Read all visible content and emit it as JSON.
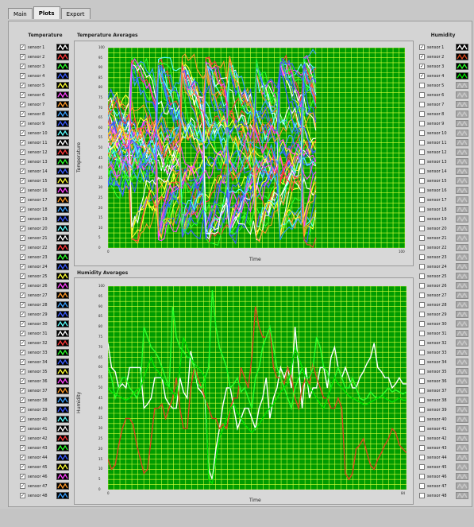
{
  "tabs": [
    {
      "label": "Main",
      "active": false
    },
    {
      "label": "Plots",
      "active": true
    },
    {
      "label": "Export",
      "active": false
    }
  ],
  "temperature_group": {
    "title": "Temperature"
  },
  "humidity_group": {
    "title": "Humidity"
  },
  "sensors": [
    "sensor 1",
    "sensor 2",
    "sensor 3",
    "sensor 4",
    "sensor 5",
    "sensor 6",
    "sensor 7",
    "sensor 8",
    "sensor 9",
    "sensor 10",
    "sensor 11",
    "sensor 12",
    "sensor 13",
    "sensor 14",
    "sensor 15",
    "sensor 16",
    "sensor 17",
    "sensor 18",
    "sensor 19",
    "sensor 20",
    "sensor 21",
    "sensor 22",
    "sensor 23",
    "sensor 24",
    "sensor 25",
    "sensor 26",
    "sensor 27",
    "sensor 28",
    "sensor 29",
    "sensor 30",
    "sensor 31",
    "sensor 32",
    "sensor 33",
    "sensor 34",
    "sensor 35",
    "sensor 36",
    "sensor 37",
    "sensor 38",
    "sensor 39",
    "sensor 40",
    "sensor 41",
    "sensor 42",
    "sensor 43",
    "sensor 44",
    "sensor 45",
    "sensor 46",
    "sensor 47",
    "sensor 48"
  ],
  "sensor_colors": [
    "#ffffff",
    "#ff3b3b",
    "#2aff2a",
    "#3a5cff",
    "#ffff33",
    "#ff44ff",
    "#ff9a2a",
    "#3aa0ff",
    "#3a5cff",
    "#5cffff",
    "#ffffff",
    "#ff3b3b",
    "#2aff2a",
    "#3a5cff",
    "#ffff33",
    "#ff44ff",
    "#ff9a2a",
    "#3aa0ff",
    "#3a5cff",
    "#5cffff",
    "#ffffff",
    "#ff3b3b",
    "#2aff2a",
    "#3a5cff",
    "#ffff33",
    "#ff44ff",
    "#ff9a2a",
    "#3aa0ff",
    "#3a5cff",
    "#5cffff",
    "#ffffff",
    "#ff3b3b",
    "#2aff2a",
    "#3a5cff",
    "#ffff33",
    "#ff44ff",
    "#ff9a2a",
    "#3aa0ff",
    "#3a5cff",
    "#5cffff",
    "#ffffff",
    "#ff3b3b",
    "#2aff2a",
    "#3a5cff",
    "#ffff33",
    "#ff44ff",
    "#ff9a2a",
    "#3aa0ff"
  ],
  "humidity_checked": 4,
  "chart_data": [
    {
      "type": "line",
      "title": "Temperature Averages",
      "xlabel": "Time",
      "ylabel": "Temperature",
      "xlim": [
        0,
        100
      ],
      "ylim": [
        0,
        100
      ],
      "x_ticks": [
        "0",
        "100"
      ],
      "y_ticks": [
        "100",
        "95",
        "90",
        "85",
        "80",
        "75",
        "70",
        "65",
        "60",
        "55",
        "50",
        "45",
        "40",
        "35",
        "30",
        "25",
        "20",
        "15",
        "10",
        "5",
        "0"
      ],
      "grid": true,
      "series_count": 48,
      "data_x_end": 70
    },
    {
      "type": "line",
      "title": "Humidity Averages",
      "xlabel": "Time",
      "ylabel": "Humidity",
      "xlim": [
        0,
        84
      ],
      "ylim": [
        0,
        100
      ],
      "x_ticks": [
        "0",
        "84"
      ],
      "y_ticks": [
        "100",
        "95",
        "90",
        "85",
        "80",
        "75",
        "70",
        "65",
        "60",
        "55",
        "50",
        "45",
        "40",
        "35",
        "30",
        "25",
        "20",
        "15",
        "10",
        "5",
        "0"
      ],
      "grid": true,
      "series": [
        {
          "color": "#ffffff",
          "values": [
            72,
            60,
            58,
            50,
            52,
            50,
            60,
            60,
            60,
            60,
            40,
            42,
            45,
            55,
            55,
            55,
            45,
            42,
            40,
            40,
            55,
            48,
            45,
            68,
            60,
            50,
            48,
            45,
            10,
            5,
            20,
            30,
            42,
            50,
            50,
            40,
            30,
            35,
            40,
            40,
            35,
            30,
            40,
            45,
            55,
            35,
            45,
            50,
            60,
            55,
            60,
            50,
            80,
            60,
            40,
            60,
            45,
            50,
            50,
            60,
            60,
            50,
            65,
            70,
            60,
            55,
            60,
            55,
            50,
            50,
            55,
            58,
            62,
            65,
            72,
            60,
            58,
            55,
            55,
            50,
            52,
            55,
            52,
            52
          ]
        },
        {
          "color": "#d84a1e",
          "values": [
            15,
            10,
            12,
            22,
            30,
            35,
            35,
            32,
            22,
            15,
            8,
            10,
            25,
            40,
            40,
            42,
            35,
            40,
            45,
            55,
            40,
            30,
            30,
            50,
            60,
            55,
            50,
            45,
            40,
            35,
            35,
            30,
            32,
            30,
            40,
            45,
            45,
            60,
            55,
            50,
            65,
            90,
            80,
            75,
            75,
            80,
            60,
            55,
            55,
            52,
            60,
            55,
            45,
            40,
            50,
            55,
            52,
            62,
            55,
            50,
            45,
            45,
            40,
            40,
            45,
            40,
            8,
            5,
            8,
            20,
            22,
            25,
            18,
            12,
            10,
            15,
            18,
            22,
            25,
            30,
            28,
            22,
            20,
            18
          ]
        },
        {
          "color": "#2aff2a",
          "values": [
            60,
            55,
            45,
            50,
            55,
            55,
            50,
            48,
            45,
            50,
            80,
            75,
            70,
            68,
            65,
            60,
            55,
            50,
            90,
            75,
            70,
            68,
            65,
            65,
            60,
            52,
            50,
            55,
            60,
            98,
            80,
            70,
            65,
            60,
            50,
            52,
            55,
            48,
            50,
            45,
            40,
            55,
            60,
            70,
            75,
            80,
            70,
            60,
            55,
            50,
            45,
            40,
            50,
            55,
            60,
            55,
            55,
            60,
            75,
            70,
            60,
            58,
            50,
            55,
            60,
            55,
            50,
            50,
            55,
            50,
            45,
            44,
            45,
            48,
            46,
            45,
            46,
            48,
            50,
            48,
            49,
            48,
            47,
            48
          ]
        },
        {
          "color": "#00e400",
          "values": [
            50,
            48,
            47,
            46,
            45,
            44,
            45,
            47,
            49,
            50,
            55,
            60,
            65,
            60,
            58,
            55,
            52,
            50,
            48,
            45,
            60,
            75,
            70,
            65,
            62,
            60,
            58,
            55,
            5,
            3,
            15,
            25,
            30,
            35,
            40,
            42,
            38,
            35,
            32,
            30,
            28,
            30,
            32,
            35,
            38,
            40,
            42,
            45,
            48,
            50,
            52,
            60,
            70,
            65,
            60,
            55,
            50,
            48,
            45,
            42,
            40,
            45,
            50,
            55,
            52,
            50,
            48,
            46,
            45,
            44,
            43,
            42,
            42,
            43,
            44,
            45,
            46,
            45,
            44,
            43,
            44,
            45,
            44,
            44
          ]
        }
      ]
    }
  ]
}
